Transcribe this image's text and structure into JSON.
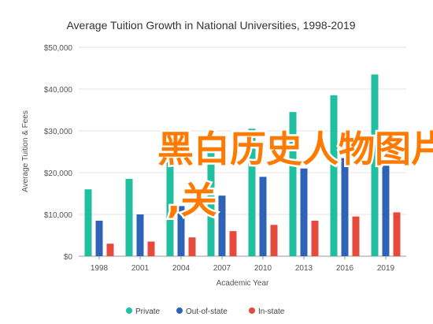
{
  "chart_data": {
    "type": "bar",
    "title": "Average Tuition Growth in National Universities, 1998-2019",
    "xlabel": "Academic Year",
    "ylabel": "Average Tuition & Fees",
    "categories": [
      "1998",
      "2001",
      "2004",
      "2007",
      "2010",
      "2013",
      "2016",
      "2019"
    ],
    "series": [
      {
        "name": "Private",
        "color": "#1fbf9f",
        "values": [
          16000,
          18500,
          22500,
          26500,
          30500,
          34500,
          38500,
          43500
        ]
      },
      {
        "name": "Out-of-state",
        "color": "#2f63b8",
        "values": [
          8500,
          10000,
          12000,
          14500,
          19000,
          21000,
          23500,
          25500
        ]
      },
      {
        "name": "In-state",
        "color": "#e64a3c",
        "values": [
          3000,
          3500,
          4500,
          6000,
          7500,
          8500,
          9500,
          10500
        ]
      }
    ],
    "ylim": [
      0,
      50000
    ],
    "yticks": [
      0,
      10000,
      20000,
      30000,
      40000,
      50000
    ],
    "ytick_labels": [
      "$0",
      "$10,000",
      "$20,000",
      "$30,000",
      "$40,000",
      "$50,000"
    ],
    "grid": true,
    "legend_position": "bottom"
  },
  "overlay": {
    "line1": "黑白历史人物图片",
    "line2": ",关"
  }
}
